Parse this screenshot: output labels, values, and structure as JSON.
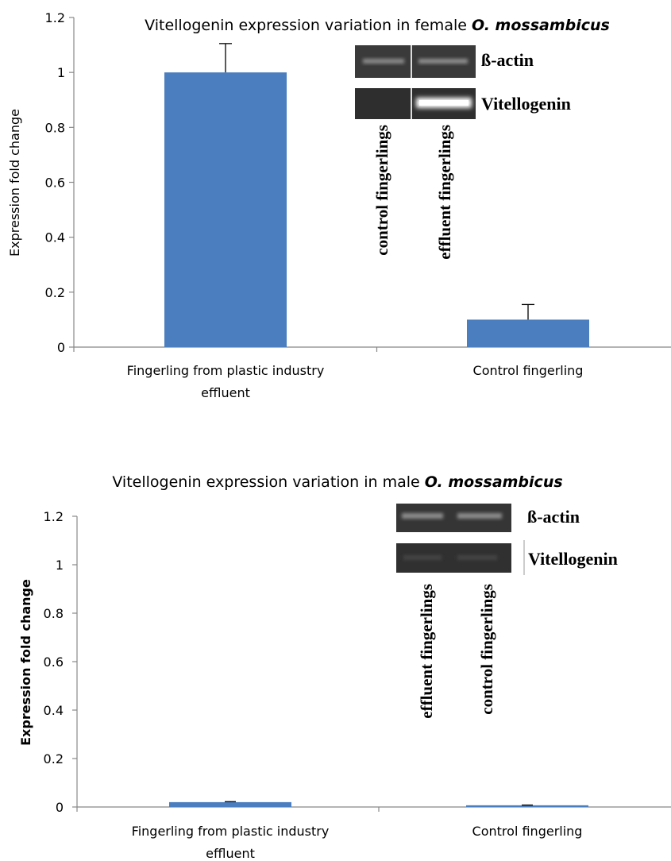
{
  "chart_data": [
    {
      "type": "bar",
      "title": "Vitellogenin expression variation in female ",
      "title_species": "O. mossambicus",
      "ylabel": "Expression fold change",
      "categories": [
        "Fingerling from plastic industry",
        "Control fingerling"
      ],
      "category_line2": [
        "effluent",
        ""
      ],
      "values": [
        1.0,
        0.1
      ],
      "errors": [
        0.105,
        0.055
      ],
      "ylim": [
        0,
        1.2
      ],
      "yticks": [
        0,
        0.2,
        0.4,
        0.6,
        0.8,
        1,
        1.2
      ],
      "ytick_labels": [
        "0",
        "0.2",
        "0.4",
        "0.6",
        "0.8",
        "1",
        "1.2"
      ],
      "bar_color": "#4a7ebf",
      "gel": {
        "bands": [
          "ß-actin",
          "Vitellogenin"
        ],
        "lanes": [
          "control fingerlings",
          "effluent fingerlings"
        ]
      }
    },
    {
      "type": "bar",
      "title": "Vitellogenin expression variation in male ",
      "title_species": "O. mossambicus",
      "ylabel": "Expression fold change",
      "categories": [
        "Fingerling from plastic industry",
        "Control fingerling"
      ],
      "category_line2": [
        "effluent",
        ""
      ],
      "values": [
        0.02,
        0.007
      ],
      "errors": [
        0.002,
        0.001
      ],
      "ylim": [
        0,
        1.2
      ],
      "yticks": [
        0,
        0.2,
        0.4,
        0.6,
        0.8,
        1,
        1.2
      ],
      "ytick_labels": [
        "0",
        "0.2",
        "0.4",
        "0.6",
        "0.8",
        "1",
        "1.2"
      ],
      "bar_color": "#4a7ebf",
      "gel": {
        "bands": [
          "ß-actin",
          "Vitellogenin"
        ],
        "lanes": [
          "effluent fingerlings",
          "control fingerlings"
        ]
      }
    }
  ]
}
